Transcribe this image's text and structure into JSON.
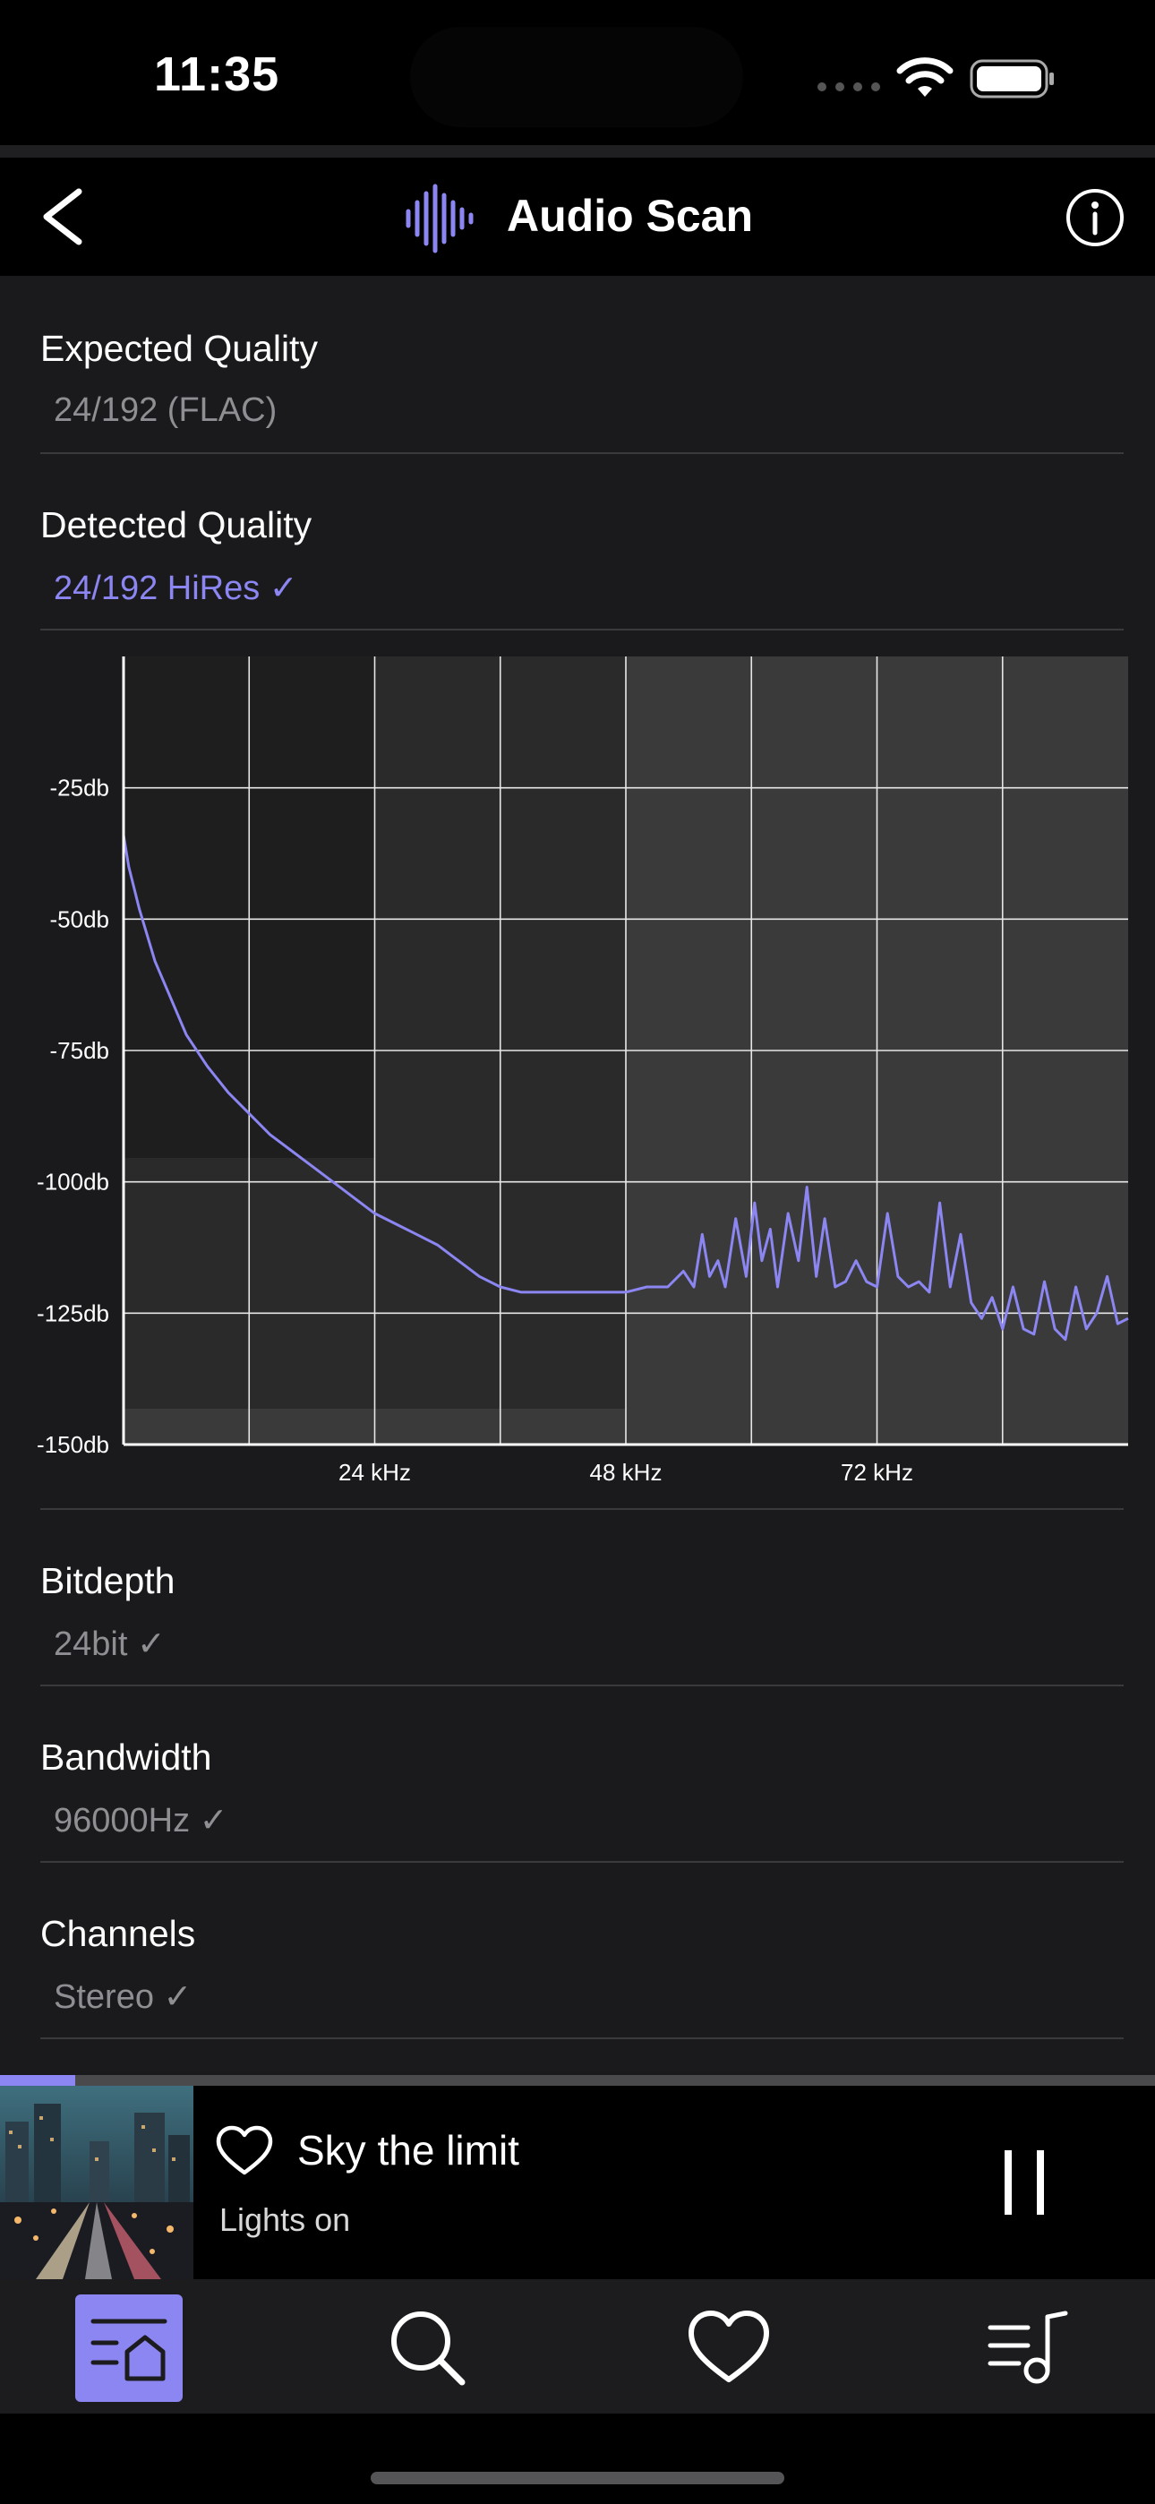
{
  "status_bar": {
    "time": "11:35"
  },
  "header": {
    "title": "Audio Scan"
  },
  "sections": {
    "expected": {
      "label": "Expected Quality",
      "value": "24/192 (FLAC)"
    },
    "detected": {
      "label": "Detected Quality",
      "value": "24/192 HiRes ✓"
    },
    "bitdepth": {
      "label": "Bitdepth",
      "value": "24bit ✓"
    },
    "bandwidth": {
      "label": "Bandwidth",
      "value": "96000Hz ✓"
    },
    "channels": {
      "label": "Channels",
      "value": "Stereo ✓"
    }
  },
  "chart_data": {
    "type": "line",
    "ylim": [
      -150,
      0
    ],
    "xlim": [
      0,
      96
    ],
    "y_ticks": [
      "-25db",
      "-50db",
      "-75db",
      "-100db",
      "-125db",
      "-150db"
    ],
    "x_ticks": [
      "24 kHz",
      "48 kHz",
      "72 kHz"
    ],
    "grid": true,
    "series": [
      {
        "color": "#8c86f2",
        "x": [
          0,
          0.5,
          1.5,
          3,
          4.5,
          6,
          8,
          10,
          12,
          14,
          16,
          18,
          20,
          22,
          24,
          26,
          28,
          30,
          32,
          34,
          36,
          38,
          40,
          42,
          44,
          46,
          48,
          50,
          52,
          53.5,
          54.5,
          55.3,
          56,
          56.8,
          57.5,
          58.5,
          59.5,
          60.3,
          61,
          61.8,
          62.5,
          63.5,
          64.5,
          65.3,
          66.2,
          67,
          68,
          69,
          70,
          71,
          72,
          73,
          74,
          75,
          76,
          77,
          78,
          79,
          80,
          81,
          82,
          83,
          84,
          85,
          86,
          87,
          88,
          89,
          90,
          91,
          92,
          93,
          94,
          95,
          96
        ],
        "y": [
          -34,
          -40,
          -48,
          -58,
          -65,
          -72,
          -78,
          -83,
          -87,
          -91,
          -94,
          -97,
          -100,
          -103,
          -106,
          -108,
          -110,
          -112,
          -115,
          -118,
          -120,
          -121,
          -121,
          -121,
          -121,
          -121,
          -121,
          -120,
          -120,
          -117,
          -120,
          -110,
          -118,
          -115,
          -120,
          -107,
          -118,
          -104,
          -115,
          -109,
          -120,
          -106,
          -115,
          -101,
          -118,
          -107,
          -120,
          -119,
          -115,
          -119,
          -120,
          -106,
          -118,
          -120,
          -119,
          -121,
          -104,
          -120,
          -110,
          -123,
          -126,
          -122,
          -128,
          -120,
          -128,
          -129,
          -119,
          -128,
          -130,
          -120,
          -128,
          -125,
          -118,
          -127,
          -126
        ]
      }
    ]
  },
  "now_playing": {
    "title": "Sky the limit",
    "artist": "Lights on",
    "progress": 0.065
  },
  "tabs": [
    "home",
    "search",
    "favorites",
    "queue"
  ]
}
